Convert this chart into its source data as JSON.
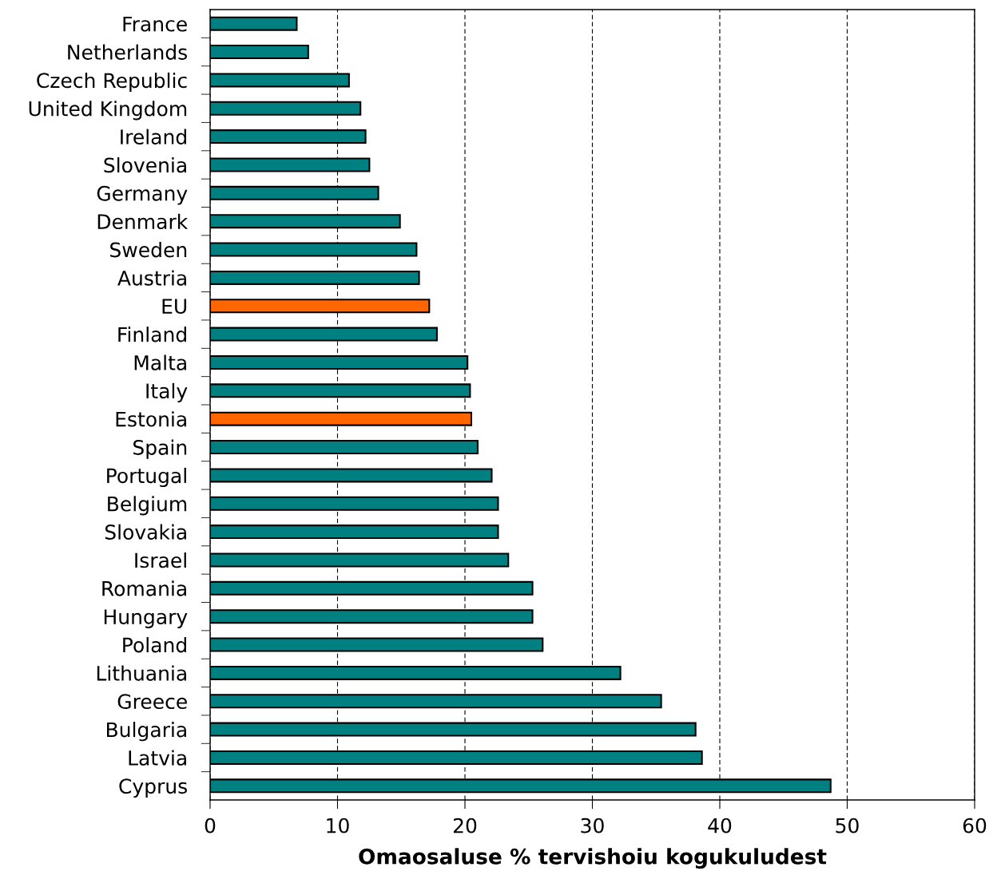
{
  "chart_data": {
    "type": "bar",
    "orientation": "horizontal",
    "xlabel": "Omaosaluse % tervishoiu kogukuludest",
    "categories": [
      "France",
      "Netherlands",
      "Czech Republic",
      "United Kingdom",
      "Ireland",
      "Slovenia",
      "Germany",
      "Denmark",
      "Sweden",
      "Austria",
      "EU",
      "Finland",
      "Malta",
      "Italy",
      "Estonia",
      "Spain",
      "Portugal",
      "Belgium",
      "Slovakia",
      "Israel",
      "Romania",
      "Hungary",
      "Poland",
      "Lithuania",
      "Greece",
      "Bulgaria",
      "Latvia",
      "Cyprus"
    ],
    "values": [
      6.8,
      7.7,
      10.9,
      11.8,
      12.2,
      12.5,
      13.2,
      14.9,
      16.2,
      16.4,
      17.2,
      17.8,
      20.2,
      20.4,
      20.5,
      21.0,
      22.1,
      22.6,
      22.6,
      23.4,
      25.3,
      25.3,
      26.1,
      32.2,
      35.4,
      38.1,
      38.6,
      48.7
    ],
    "colors": [
      "#008080",
      "#008080",
      "#008080",
      "#008080",
      "#008080",
      "#008080",
      "#008080",
      "#008080",
      "#008080",
      "#008080",
      "#ff6600",
      "#008080",
      "#008080",
      "#008080",
      "#ff6600",
      "#008080",
      "#008080",
      "#008080",
      "#008080",
      "#008080",
      "#008080",
      "#008080",
      "#008080",
      "#008080",
      "#008080",
      "#008080",
      "#008080",
      "#008080"
    ],
    "xlim": [
      0,
      60
    ],
    "xticks": [
      0,
      10,
      20,
      30,
      40,
      50,
      60
    ],
    "grid": "x",
    "legend": false
  }
}
